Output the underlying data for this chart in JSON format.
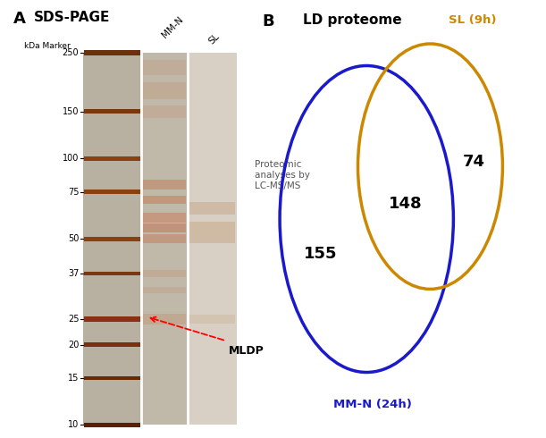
{
  "panel_A_label": "A",
  "panel_B_label": "B",
  "panel_A_title": "SDS-PAGE",
  "panel_B_title": "LD proteome",
  "gel_kda_labels": [
    "250",
    "150",
    "100",
    "75",
    "50",
    "37",
    "25",
    "20",
    "15",
    "10"
  ],
  "gel_kda_values": [
    250,
    150,
    100,
    75,
    50,
    37,
    25,
    20,
    15,
    10
  ],
  "arrow_text": "Proteomic\nanalyses by\nLC-MS/MS",
  "mldp_label": "MLDP",
  "venn_blue_label": "MM-N (24h)",
  "venn_yellow_label": "SL (9h)",
  "venn_blue_only": "155",
  "venn_yellow_only": "74",
  "venn_intersect": "148",
  "blue_color": "#1a1acc",
  "yellow_color": "#cc8800",
  "background_color": "#ffffff",
  "gel_overall_bg": "#c8c0b0",
  "marker_lane_bg": "#b8b0a0",
  "mmn_lane_bg": "#c0b8a8",
  "sl_lane_bg": "#d8d0c4",
  "marker_band_dark": "#5a2a00",
  "marker_band_mid": "#8B4010",
  "mmn_band_heavy": "#b06030",
  "mmn_band_light": "#c89070",
  "sl_band_color": "#c8a888"
}
